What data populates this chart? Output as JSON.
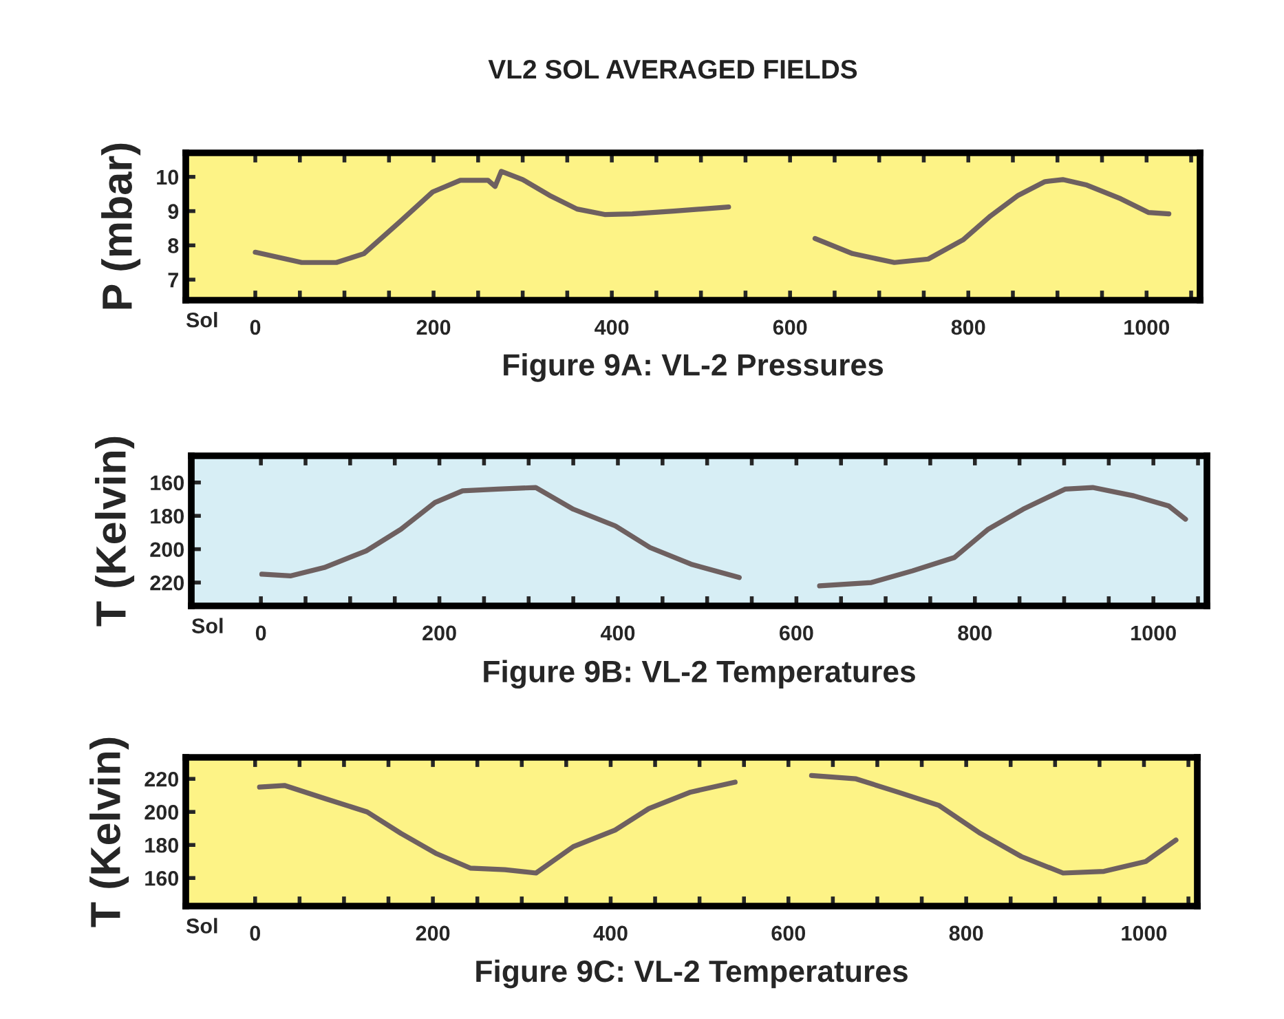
{
  "chart_data": [
    {
      "type": "line",
      "title": "Figure 9A: VL-2 Pressures",
      "xlabel": "Sol",
      "ylabel": "P (mbar)",
      "annotations": [
        "VL2 SOL AVERAGED FIELDS"
      ],
      "x": [
        0,
        52,
        91,
        122,
        161,
        199,
        230,
        261,
        269,
        276,
        300,
        330,
        361,
        392,
        423,
        469,
        531,
        580,
        628,
        670,
        717,
        755,
        794,
        825,
        856,
        886,
        906,
        933,
        971,
        1002,
        1025
      ],
      "series": [
        {
          "color": "#6e6060",
          "values": [
            7.8,
            7.5,
            7.5,
            7.76,
            8.66,
            9.56,
            9.9,
            9.9,
            9.72,
            10.16,
            9.92,
            9.46,
            9.06,
            8.9,
            8.92,
            9.0,
            9.12,
            null,
            8.2,
            7.76,
            7.5,
            7.6,
            8.16,
            8.86,
            9.46,
            9.86,
            9.92,
            9.76,
            9.36,
            8.96,
            8.92
          ]
        }
      ],
      "xlim": [
        -78,
        1060
      ],
      "ylim": [
        6.4,
        10.7
      ],
      "yticks": [
        7,
        8,
        9,
        10
      ],
      "xticks": [
        0,
        {
          "value": 50,
          "label": null
        },
        {
          "value": 100,
          "label": null
        },
        {
          "value": 150,
          "label": null
        },
        200,
        {
          "value": 250,
          "label": null
        },
        {
          "value": 300,
          "label": null
        },
        {
          "value": 350,
          "label": null
        },
        400,
        {
          "value": 450,
          "label": null
        },
        {
          "value": 500,
          "label": null
        },
        {
          "value": 550,
          "label": null
        },
        600,
        {
          "value": 650,
          "label": null
        },
        {
          "value": 700,
          "label": null
        },
        {
          "value": 750,
          "label": null
        },
        800,
        {
          "value": 850,
          "label": null
        },
        {
          "value": 900,
          "label": null
        },
        {
          "value": 950,
          "label": null
        },
        1000,
        {
          "value": 1050,
          "label": null
        }
      ],
      "grid": false,
      "legend": false
    },
    {
      "type": "line",
      "title": "Figure 9B: VL-2 Temperatures",
      "xlabel": "Sol",
      "ylabel": "T (Kelvin)",
      "x": [
        1,
        33,
        71,
        118,
        157,
        195,
        226,
        265,
        308,
        350,
        397,
        436,
        482,
        536,
        580,
        626,
        684,
        730,
        777,
        815,
        854,
        901,
        932,
        978,
        1017,
        1036
      ],
      "series": [
        {
          "color": "#6e6060",
          "values": [
            215,
            216,
            211,
            201,
            188,
            172,
            165,
            164,
            163,
            176,
            186,
            199,
            209,
            217,
            null,
            222,
            220,
            213,
            205,
            188,
            176,
            164,
            163,
            168,
            174,
            182
          ]
        }
      ],
      "xlim": [
        -78,
        1060
      ],
      "ylim": [
        234,
        144
      ],
      "yticks": [
        160,
        180,
        200,
        220
      ],
      "xticks": [
        0,
        {
          "value": 50,
          "label": null
        },
        {
          "value": 100,
          "label": null
        },
        {
          "value": 150,
          "label": null
        },
        200,
        {
          "value": 250,
          "label": null
        },
        {
          "value": 300,
          "label": null
        },
        {
          "value": 350,
          "label": null
        },
        400,
        {
          "value": 450,
          "label": null
        },
        {
          "value": 500,
          "label": null
        },
        {
          "value": 550,
          "label": null
        },
        600,
        {
          "value": 650,
          "label": null
        },
        {
          "value": 700,
          "label": null
        },
        {
          "value": 750,
          "label": null
        },
        800,
        {
          "value": 850,
          "label": null
        },
        {
          "value": 900,
          "label": null
        },
        {
          "value": 950,
          "label": null
        },
        1000,
        {
          "value": 1050,
          "label": null
        }
      ],
      "grid": false,
      "legend": false
    },
    {
      "type": "line",
      "title": "Figure 9C: VL-2 Temperatures",
      "xlabel": "Sol",
      "ylabel": "T (Kelvin)",
      "x": [
        5,
        33,
        79,
        126,
        164,
        203,
        242,
        281,
        316,
        358,
        405,
        443,
        490,
        540,
        580,
        626,
        676,
        723,
        769,
        816,
        862,
        909,
        955,
        1002,
        1036
      ],
      "series": [
        {
          "color": "#6e6060",
          "values": [
            215,
            216,
            208,
            200,
            187,
            175,
            166,
            165,
            163,
            179,
            189,
            202,
            212,
            218,
            null,
            222,
            220,
            212,
            204,
            187,
            173,
            163,
            164,
            170,
            183
          ]
        }
      ],
      "xlim": [
        -78,
        1060
      ],
      "ylim": [
        143,
        233
      ],
      "yticks": [
        160,
        180,
        200,
        220
      ],
      "xticks": [
        0,
        {
          "value": 50,
          "label": null
        },
        {
          "value": 100,
          "label": null
        },
        {
          "value": 150,
          "label": null
        },
        200,
        {
          "value": 250,
          "label": null
        },
        {
          "value": 300,
          "label": null
        },
        {
          "value": 350,
          "label": null
        },
        400,
        {
          "value": 450,
          "label": null
        },
        {
          "value": 500,
          "label": null
        },
        {
          "value": 550,
          "label": null
        },
        600,
        {
          "value": 650,
          "label": null
        },
        {
          "value": 700,
          "label": null
        },
        {
          "value": 750,
          "label": null
        },
        800,
        {
          "value": 850,
          "label": null
        },
        {
          "value": 900,
          "label": null
        },
        {
          "value": 950,
          "label": null
        },
        1000,
        {
          "value": 1050,
          "label": null
        }
      ],
      "grid": false,
      "legend": false
    }
  ]
}
